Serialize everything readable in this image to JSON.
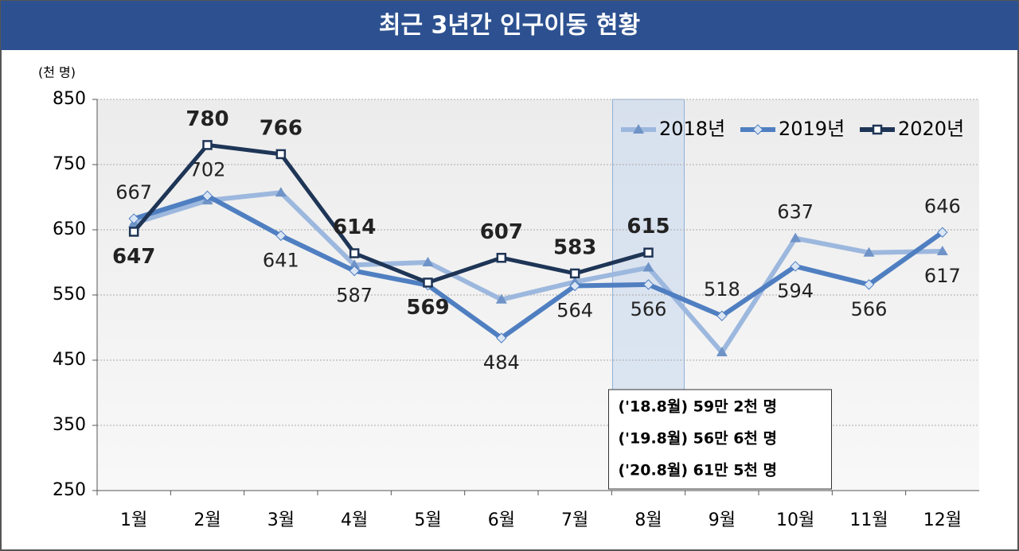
{
  "chart_data": {
    "type": "line",
    "title": "최근 3년간 인구이동 현황",
    "y_unit": "(천 명)",
    "categories": [
      "1월",
      "2월",
      "3월",
      "4월",
      "5월",
      "6월",
      "7월",
      "8월",
      "9월",
      "10월",
      "11월",
      "12월"
    ],
    "ylim": [
      250,
      850
    ],
    "yticks": [
      250,
      350,
      450,
      550,
      650,
      750,
      850
    ],
    "grid": true,
    "legend": "top-right",
    "series": [
      {
        "name": "2018년",
        "color": "#9db8de",
        "marker": "triangle",
        "values": [
          660,
          695,
          707,
          596,
          600,
          543,
          570,
          592,
          462,
          637,
          615,
          617
        ],
        "value_labels": [
          null,
          null,
          null,
          null,
          null,
          null,
          null,
          null,
          null,
          "637",
          null,
          "617"
        ]
      },
      {
        "name": "2019년",
        "color": "#4f7fc1",
        "marker": "diamond",
        "values": [
          667,
          702,
          641,
          587,
          565,
          484,
          564,
          566,
          518,
          594,
          566,
          646
        ],
        "value_labels": [
          "667",
          "702",
          "641",
          "587",
          null,
          "484",
          "564",
          "566",
          "518",
          "594",
          "566",
          "646"
        ]
      },
      {
        "name": "2020년",
        "color": "#1e3556",
        "marker": "square",
        "values": [
          647,
          780,
          766,
          614,
          569,
          607,
          583,
          615,
          null,
          null,
          null,
          null
        ],
        "value_labels": [
          "647",
          "780",
          "766",
          "614",
          "569",
          "607",
          "583",
          "615",
          null,
          null,
          null,
          null
        ]
      }
    ],
    "annotations": [
      "('18.8월) 59만 2천 명",
      "('19.8월) 56만 6천 명",
      "('20.8월) 61만 5천 명"
    ]
  }
}
